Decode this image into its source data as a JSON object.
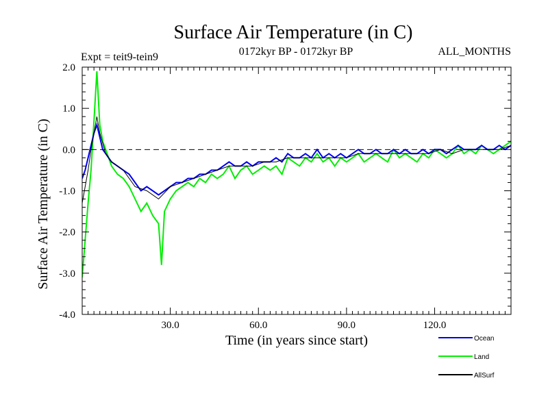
{
  "chart_data": {
    "type": "line",
    "title": "Surface Air Temperature (in C)",
    "subtitle_left": "Expt = teit9-tein9",
    "subtitle_center": "0172kyr BP - 0172kyr BP",
    "subtitle_right": "ALL_MONTHS",
    "xlabel": "Time (in years since start)",
    "ylabel": "Surface Air Temperature (in C)",
    "xlim": [
      0,
      146
    ],
    "ylim": [
      -4.0,
      2.0
    ],
    "x_ticks": [
      {
        "value": 30,
        "label": "30.0"
      },
      {
        "value": 60,
        "label": "60.0"
      },
      {
        "value": 90,
        "label": "90.0"
      },
      {
        "value": 120,
        "label": "120.0"
      }
    ],
    "y_ticks": [
      {
        "value": 2,
        "label": "2.0"
      },
      {
        "value": 1,
        "label": "1.0"
      },
      {
        "value": 0,
        "label": "0.0"
      },
      {
        "value": -1,
        "label": "-1.0"
      },
      {
        "value": -2,
        "label": "-2.0"
      },
      {
        "value": -3,
        "label": "-3.0"
      },
      {
        "value": -4,
        "label": "-4.0"
      }
    ],
    "reference_line": 0.0,
    "series": [
      {
        "name": "Land",
        "color": "#00ee00",
        "x": [
          0,
          1,
          2,
          3,
          4,
          5,
          6,
          7,
          8,
          9,
          10,
          12,
          14,
          16,
          18,
          20,
          22,
          24,
          26,
          27,
          28,
          30,
          32,
          34,
          36,
          38,
          40,
          42,
          44,
          46,
          48,
          50,
          52,
          54,
          56,
          58,
          60,
          62,
          64,
          66,
          68,
          70,
          72,
          74,
          76,
          78,
          80,
          82,
          84,
          86,
          88,
          90,
          92,
          94,
          96,
          98,
          100,
          102,
          104,
          106,
          108,
          110,
          112,
          114,
          116,
          118,
          120,
          122,
          124,
          126,
          128,
          130,
          132,
          134,
          136,
          138,
          140,
          142,
          144,
          146
        ],
        "values": [
          -3.1,
          -2.2,
          -1.3,
          -0.5,
          0.7,
          1.9,
          0.6,
          0.2,
          0.0,
          -0.2,
          -0.4,
          -0.6,
          -0.7,
          -0.9,
          -1.2,
          -1.5,
          -1.3,
          -1.6,
          -1.8,
          -2.8,
          -1.5,
          -1.2,
          -1.0,
          -0.9,
          -0.8,
          -0.9,
          -0.7,
          -0.8,
          -0.6,
          -0.7,
          -0.6,
          -0.4,
          -0.7,
          -0.5,
          -0.4,
          -0.6,
          -0.5,
          -0.4,
          -0.5,
          -0.4,
          -0.6,
          -0.2,
          -0.3,
          -0.4,
          -0.2,
          -0.3,
          -0.1,
          -0.3,
          -0.2,
          -0.4,
          -0.2,
          -0.3,
          -0.2,
          -0.1,
          -0.3,
          -0.2,
          -0.1,
          -0.2,
          -0.3,
          0.0,
          -0.2,
          -0.1,
          -0.2,
          -0.3,
          -0.1,
          -0.2,
          0.0,
          -0.1,
          -0.2,
          -0.1,
          0.1,
          -0.1,
          0.0,
          -0.1,
          0.1,
          0.0,
          -0.1,
          0.0,
          0.1,
          0.2
        ]
      },
      {
        "name": "Ocean",
        "color": "#0000ee",
        "x": [
          0,
          1,
          2,
          3,
          4,
          5,
          6,
          7,
          8,
          9,
          10,
          12,
          14,
          16,
          18,
          20,
          22,
          24,
          26,
          28,
          30,
          32,
          34,
          36,
          38,
          40,
          42,
          44,
          46,
          48,
          50,
          52,
          54,
          56,
          58,
          60,
          62,
          64,
          66,
          68,
          70,
          72,
          74,
          76,
          78,
          80,
          82,
          84,
          86,
          88,
          90,
          92,
          94,
          96,
          98,
          100,
          102,
          104,
          106,
          108,
          110,
          112,
          114,
          116,
          118,
          120,
          122,
          124,
          126,
          128,
          130,
          132,
          134,
          136,
          138,
          140,
          142,
          144,
          146
        ],
        "values": [
          -0.7,
          -0.5,
          -0.2,
          0.1,
          0.4,
          0.6,
          0.3,
          0.0,
          -0.1,
          -0.2,
          -0.3,
          -0.4,
          -0.5,
          -0.6,
          -0.8,
          -1.0,
          -0.9,
          -1.0,
          -1.1,
          -1.0,
          -0.9,
          -0.8,
          -0.8,
          -0.7,
          -0.7,
          -0.6,
          -0.6,
          -0.5,
          -0.5,
          -0.4,
          -0.3,
          -0.4,
          -0.4,
          -0.3,
          -0.4,
          -0.3,
          -0.3,
          -0.3,
          -0.2,
          -0.3,
          -0.1,
          -0.2,
          -0.2,
          -0.1,
          -0.2,
          0.0,
          -0.2,
          -0.1,
          -0.2,
          -0.1,
          -0.2,
          -0.1,
          0.0,
          -0.1,
          -0.1,
          0.0,
          -0.1,
          -0.1,
          0.0,
          -0.1,
          0.0,
          -0.1,
          -0.1,
          0.0,
          -0.1,
          0.0,
          0.0,
          -0.1,
          0.0,
          0.1,
          0.0,
          0.0,
          0.0,
          0.1,
          0.0,
          0.0,
          0.1,
          0.0,
          0.1
        ]
      },
      {
        "name": "AllSurf",
        "color": "#000000",
        "x": [
          0,
          1,
          2,
          3,
          4,
          5,
          6,
          8,
          10,
          14,
          18,
          22,
          26,
          30,
          34,
          38,
          42,
          46,
          50,
          54,
          58,
          62,
          66,
          70,
          74,
          78,
          82,
          86,
          90,
          94,
          98,
          102,
          106,
          110,
          114,
          118,
          122,
          126,
          130,
          134,
          138,
          142,
          146
        ],
        "values": [
          -1.3,
          -0.9,
          -0.5,
          0.0,
          0.4,
          0.8,
          0.4,
          -0.1,
          -0.3,
          -0.5,
          -0.9,
          -1.0,
          -1.2,
          -0.9,
          -0.8,
          -0.7,
          -0.6,
          -0.5,
          -0.4,
          -0.4,
          -0.4,
          -0.3,
          -0.3,
          -0.2,
          -0.2,
          -0.2,
          -0.2,
          -0.2,
          -0.2,
          -0.1,
          -0.1,
          -0.1,
          -0.1,
          -0.1,
          -0.1,
          -0.1,
          0.0,
          -0.1,
          0.0,
          0.0,
          0.0,
          0.0,
          0.1
        ]
      }
    ],
    "legend_position": "bottom-right",
    "legend": [
      {
        "name": "Ocean",
        "color": "#0000ee"
      },
      {
        "name": "Land",
        "color": "#00ee00"
      },
      {
        "name": "AllSurf",
        "color": "#000000"
      }
    ]
  }
}
